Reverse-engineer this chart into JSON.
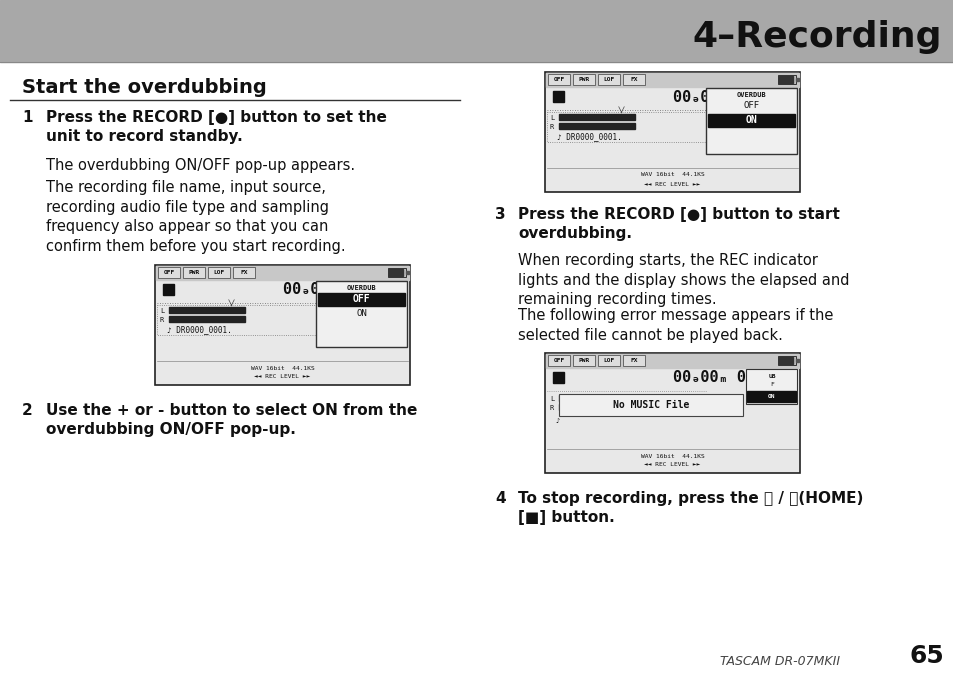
{
  "bg_color": "#ffffff",
  "header_bg": "#a8a8a8",
  "header_text": "4–Recording",
  "header_text_color": "#111111",
  "section_title": "Start the overdubbing",
  "step1_bold": "Press the RECORD [●] button to set the\nunit to record standby.",
  "step1_body1": "The overdubbing ON/OFF pop-up appears.",
  "step1_body2": "The recording file name, input source,\nrecording audio file type and sampling\nfrequency also appear so that you can\nconfirm them before you start recording.",
  "step2_bold": "Use the + or - button to select ON from the\noverdubbing ON/OFF pop-up.",
  "step3_bold": "Press the RECORD [●] button to start\noverdubbing.",
  "step3_body1": "When recording starts, the REC indicator\nlights and the display shows the elapsed and\nremaining recording times.",
  "step3_body2": "The following error message appears if the\nselected file cannot be played back.",
  "step4_bold": "To stop recording, press the ⏻ / ⏹(HOME)\n[■] button.",
  "footer_text": "TASCAM DR-07MKII",
  "footer_page": "65",
  "text_color": "#111111",
  "gray_text": "#555555",
  "screen_border": "#222222",
  "screen_white": "#f5f5f5",
  "screen_dark": "#111111",
  "screen_gray": "#cccccc"
}
